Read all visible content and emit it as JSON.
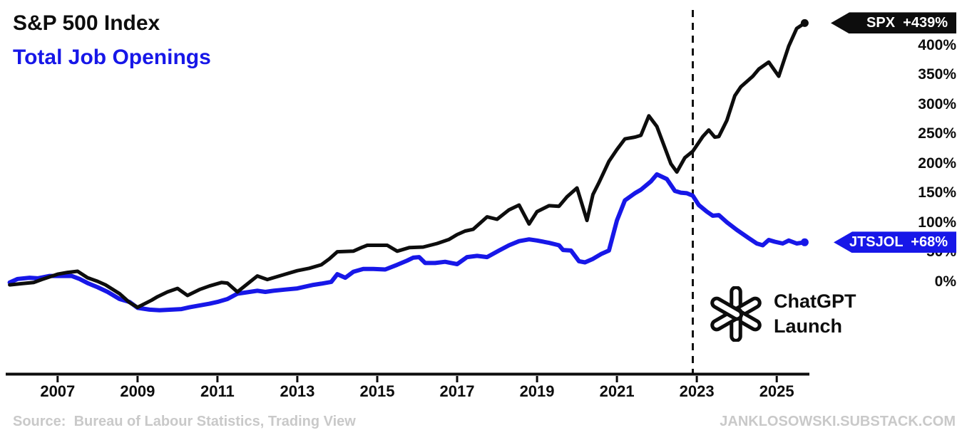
{
  "chart_data": {
    "type": "line",
    "title": "S&P 500 Index vs Total Job Openings (% change)",
    "grid": false,
    "legend_position": "top-left",
    "xlim": [
      2005.7,
      2026.05
    ],
    "ylim": [
      -75,
      466
    ],
    "x_ticks": [
      {
        "value": 2007,
        "label": "2007"
      },
      {
        "value": 2009,
        "label": "2009"
      },
      {
        "value": 2011,
        "label": "2011"
      },
      {
        "value": 2013,
        "label": "2013"
      },
      {
        "value": 2015,
        "label": "2015"
      },
      {
        "value": 2017,
        "label": "2017"
      },
      {
        "value": 2019,
        "label": "2019"
      },
      {
        "value": 2021,
        "label": "2021"
      },
      {
        "value": 2023,
        "label": "2023"
      },
      {
        "value": 2025,
        "label": "2025"
      }
    ],
    "y_ticks": [
      {
        "value": 400,
        "label": "400%"
      },
      {
        "value": 350,
        "label": "350%"
      },
      {
        "value": 300,
        "label": "300%"
      },
      {
        "value": 250,
        "label": "250%"
      },
      {
        "value": 200,
        "label": "200%"
      },
      {
        "value": 150,
        "label": "150%"
      },
      {
        "value": 100,
        "label": "100%"
      },
      {
        "value": 50,
        "label": "50%"
      },
      {
        "value": 0,
        "label": "0%"
      }
    ],
    "event_line": {
      "x": 2022.9,
      "label_line1": "ChatGPT",
      "label_line2": "Launch"
    },
    "series": [
      {
        "id": "SPX",
        "title": "S&P 500 Index",
        "tag": "SPX  +439%",
        "end_value_label": "+439%",
        "color": "#0d0d0d",
        "points": [
          [
            2005.8,
            -4
          ],
          [
            2006.1,
            -2
          ],
          [
            2006.4,
            0
          ],
          [
            2006.6,
            5
          ],
          [
            2007.0,
            14
          ],
          [
            2007.25,
            17
          ],
          [
            2007.5,
            19
          ],
          [
            2007.75,
            8
          ],
          [
            2008.0,
            2
          ],
          [
            2008.2,
            -4
          ],
          [
            2008.55,
            -19
          ],
          [
            2008.8,
            -34
          ],
          [
            2009.0,
            -42
          ],
          [
            2009.35,
            -30
          ],
          [
            2009.5,
            -24
          ],
          [
            2009.75,
            -16
          ],
          [
            2010.0,
            -10
          ],
          [
            2010.25,
            -22
          ],
          [
            2010.55,
            -12
          ],
          [
            2010.8,
            -6
          ],
          [
            2011.1,
            0
          ],
          [
            2011.25,
            -1
          ],
          [
            2011.5,
            -16
          ],
          [
            2012.0,
            11
          ],
          [
            2012.25,
            5
          ],
          [
            2012.4,
            8
          ],
          [
            2012.7,
            14
          ],
          [
            2013.0,
            20
          ],
          [
            2013.3,
            24
          ],
          [
            2013.6,
            30
          ],
          [
            2013.8,
            40
          ],
          [
            2014.0,
            52
          ],
          [
            2014.4,
            53
          ],
          [
            2014.6,
            59
          ],
          [
            2014.75,
            63
          ],
          [
            2015.0,
            63
          ],
          [
            2015.25,
            63
          ],
          [
            2015.5,
            53
          ],
          [
            2015.8,
            59
          ],
          [
            2016.15,
            60
          ],
          [
            2016.5,
            66
          ],
          [
            2016.8,
            73
          ],
          [
            2017.0,
            81
          ],
          [
            2017.2,
            87
          ],
          [
            2017.4,
            90
          ],
          [
            2017.75,
            111
          ],
          [
            2018.0,
            107
          ],
          [
            2018.3,
            123
          ],
          [
            2018.55,
            131
          ],
          [
            2018.8,
            99
          ],
          [
            2019.0,
            120
          ],
          [
            2019.3,
            130
          ],
          [
            2019.55,
            129
          ],
          [
            2019.75,
            145
          ],
          [
            2020.0,
            160
          ],
          [
            2020.25,
            105
          ],
          [
            2020.4,
            149
          ],
          [
            2020.55,
            169
          ],
          [
            2020.8,
            205
          ],
          [
            2021.0,
            225
          ],
          [
            2021.2,
            243
          ],
          [
            2021.45,
            246
          ],
          [
            2021.6,
            249
          ],
          [
            2021.8,
            282
          ],
          [
            2022.0,
            264
          ],
          [
            2022.35,
            201
          ],
          [
            2022.5,
            187
          ],
          [
            2022.7,
            211
          ],
          [
            2022.9,
            222
          ],
          [
            2023.15,
            247
          ],
          [
            2023.3,
            258
          ],
          [
            2023.45,
            246
          ],
          [
            2023.55,
            247
          ],
          [
            2023.75,
            274
          ],
          [
            2023.95,
            316
          ],
          [
            2024.1,
            331
          ],
          [
            2024.4,
            349
          ],
          [
            2024.55,
            361
          ],
          [
            2024.8,
            373
          ],
          [
            2025.05,
            349
          ],
          [
            2025.3,
            400
          ],
          [
            2025.5,
            430
          ],
          [
            2025.7,
            439
          ]
        ]
      },
      {
        "id": "JTSJOL",
        "title": "Total Job Openings",
        "tag": "JTSJOL  +68%",
        "end_value_label": "+68%",
        "color": "#1717e8",
        "points": [
          [
            2005.8,
            0
          ],
          [
            2006.0,
            6
          ],
          [
            2006.3,
            8
          ],
          [
            2006.5,
            7
          ],
          [
            2006.8,
            11
          ],
          [
            2007.1,
            11
          ],
          [
            2007.35,
            11
          ],
          [
            2007.55,
            6
          ],
          [
            2007.75,
            -1
          ],
          [
            2008.0,
            -8
          ],
          [
            2008.25,
            -16
          ],
          [
            2008.55,
            -28
          ],
          [
            2008.8,
            -33
          ],
          [
            2009.0,
            -43
          ],
          [
            2009.3,
            -46
          ],
          [
            2009.55,
            -47
          ],
          [
            2009.85,
            -46
          ],
          [
            2010.1,
            -45
          ],
          [
            2010.3,
            -42
          ],
          [
            2010.55,
            -39
          ],
          [
            2010.8,
            -36
          ],
          [
            2011.0,
            -33
          ],
          [
            2011.25,
            -28
          ],
          [
            2011.5,
            -19
          ],
          [
            2011.7,
            -17
          ],
          [
            2012.0,
            -14
          ],
          [
            2012.2,
            -16
          ],
          [
            2012.4,
            -14
          ],
          [
            2012.7,
            -12
          ],
          [
            2013.0,
            -10
          ],
          [
            2013.2,
            -7
          ],
          [
            2013.4,
            -4
          ],
          [
            2013.6,
            -2
          ],
          [
            2013.85,
            1
          ],
          [
            2014.0,
            14
          ],
          [
            2014.2,
            8
          ],
          [
            2014.4,
            18
          ],
          [
            2014.65,
            23
          ],
          [
            2014.9,
            23
          ],
          [
            2015.2,
            22
          ],
          [
            2015.5,
            30
          ],
          [
            2015.75,
            37
          ],
          [
            2015.9,
            42
          ],
          [
            2016.05,
            43
          ],
          [
            2016.2,
            33
          ],
          [
            2016.45,
            33
          ],
          [
            2016.7,
            35
          ],
          [
            2017.0,
            31
          ],
          [
            2017.25,
            43
          ],
          [
            2017.5,
            45
          ],
          [
            2017.75,
            43
          ],
          [
            2018.05,
            54
          ],
          [
            2018.3,
            63
          ],
          [
            2018.55,
            70
          ],
          [
            2018.8,
            73
          ],
          [
            2019.0,
            71
          ],
          [
            2019.3,
            67
          ],
          [
            2019.55,
            63
          ],
          [
            2019.65,
            55
          ],
          [
            2019.85,
            54
          ],
          [
            2020.05,
            36
          ],
          [
            2020.2,
            34
          ],
          [
            2020.4,
            40
          ],
          [
            2020.6,
            48
          ],
          [
            2020.8,
            54
          ],
          [
            2021.0,
            105
          ],
          [
            2021.2,
            139
          ],
          [
            2021.45,
            151
          ],
          [
            2021.6,
            157
          ],
          [
            2021.85,
            171
          ],
          [
            2022.0,
            183
          ],
          [
            2022.25,
            175
          ],
          [
            2022.45,
            155
          ],
          [
            2022.6,
            152
          ],
          [
            2022.75,
            151
          ],
          [
            2022.9,
            147
          ],
          [
            2023.05,
            131
          ],
          [
            2023.25,
            120
          ],
          [
            2023.4,
            113
          ],
          [
            2023.55,
            114
          ],
          [
            2023.75,
            102
          ],
          [
            2024.0,
            89
          ],
          [
            2024.3,
            75
          ],
          [
            2024.5,
            66
          ],
          [
            2024.65,
            63
          ],
          [
            2024.8,
            72
          ],
          [
            2024.95,
            69
          ],
          [
            2025.15,
            66
          ],
          [
            2025.3,
            71
          ],
          [
            2025.5,
            66
          ],
          [
            2025.7,
            68
          ]
        ]
      }
    ]
  },
  "footer": {
    "source": "Source:  Bureau of Labour Statistics, Trading View",
    "site": "JANKLOSOWSKI.SUBSTACK.COM"
  }
}
